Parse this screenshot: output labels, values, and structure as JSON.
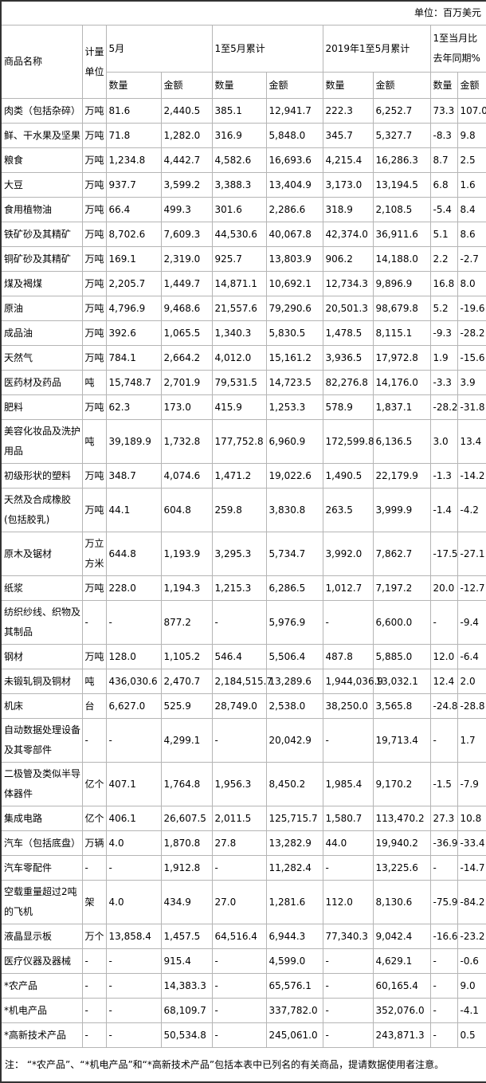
{
  "unit_note": "单位：百万美元",
  "header": {
    "commodity": "商品名称",
    "unit": "计量单位",
    "groups": [
      {
        "label": "5月",
        "sub": [
          "数量",
          "金额"
        ]
      },
      {
        "label": "1至5月累计",
        "sub": [
          "数量",
          "金额"
        ]
      },
      {
        "label": "2019年1至5月累计",
        "sub": [
          "数量",
          "金额"
        ]
      },
      {
        "label": "1至当月比去年同期%",
        "sub": [
          "数量",
          "金额"
        ]
      }
    ]
  },
  "rows": [
    {
      "name": "肉类（包括杂碎）",
      "unit": "万吨",
      "values": [
        "81.6",
        "2,440.5",
        "385.1",
        "12,941.7",
        "222.3",
        "6,252.7",
        "73.3",
        "107.0"
      ]
    },
    {
      "name": "鲜、干水果及坚果",
      "unit": "万吨",
      "values": [
        "71.8",
        "1,282.0",
        "316.9",
        "5,848.0",
        "345.7",
        "5,327.7",
        "-8.3",
        "9.8"
      ]
    },
    {
      "name": "粮食",
      "unit": "万吨",
      "values": [
        "1,234.8",
        "4,442.7",
        "4,582.6",
        "16,693.6",
        "4,215.4",
        "16,286.3",
        "8.7",
        "2.5"
      ]
    },
    {
      "name": "大豆",
      "unit": "万吨",
      "values": [
        "937.7",
        "3,599.2",
        "3,388.3",
        "13,404.9",
        "3,173.0",
        "13,194.5",
        "6.8",
        "1.6"
      ]
    },
    {
      "name": "食用植物油",
      "unit": "万吨",
      "values": [
        "66.4",
        "499.3",
        "301.6",
        "2,286.6",
        "318.9",
        "2,108.5",
        "-5.4",
        "8.4"
      ]
    },
    {
      "name": "铁矿砂及其精矿",
      "unit": "万吨",
      "values": [
        "8,702.6",
        "7,609.3",
        "44,530.6",
        "40,067.8",
        "42,374.0",
        "36,911.6",
        "5.1",
        "8.6"
      ]
    },
    {
      "name": "铜矿砂及其精矿",
      "unit": "万吨",
      "values": [
        "169.1",
        "2,319.0",
        "925.7",
        "13,803.9",
        "906.2",
        "14,188.0",
        "2.2",
        "-2.7"
      ]
    },
    {
      "name": "煤及褐煤",
      "unit": "万吨",
      "values": [
        "2,205.7",
        "1,449.7",
        "14,871.1",
        "10,692.1",
        "12,734.3",
        "9,896.9",
        "16.8",
        "8.0"
      ]
    },
    {
      "name": "原油",
      "unit": "万吨",
      "values": [
        "4,796.9",
        "9,468.6",
        "21,557.6",
        "79,290.6",
        "20,501.3",
        "98,679.8",
        "5.2",
        "-19.6"
      ]
    },
    {
      "name": "成品油",
      "unit": "万吨",
      "values": [
        "392.6",
        "1,065.5",
        "1,340.3",
        "5,830.5",
        "1,478.5",
        "8,115.1",
        "-9.3",
        "-28.2"
      ]
    },
    {
      "name": "天然气",
      "unit": "万吨",
      "values": [
        "784.1",
        "2,664.2",
        "4,012.0",
        "15,161.2",
        "3,936.5",
        "17,972.8",
        "1.9",
        "-15.6"
      ]
    },
    {
      "name": "医药材及药品",
      "unit": "吨",
      "values": [
        "15,748.7",
        "2,701.9",
        "79,531.5",
        "14,723.5",
        "82,276.8",
        "14,176.0",
        "-3.3",
        "3.9"
      ]
    },
    {
      "name": "肥料",
      "unit": "万吨",
      "values": [
        "62.3",
        "173.0",
        "415.9",
        "1,253.3",
        "578.9",
        "1,837.1",
        "-28.2",
        "-31.8"
      ]
    },
    {
      "name": "美容化妆品及洗护用品",
      "unit": "吨",
      "values": [
        "39,189.9",
        "1,732.8",
        "177,752.8",
        "6,960.9",
        "172,599.8",
        "6,136.5",
        "3.0",
        "13.4"
      ]
    },
    {
      "name": "初级形状的塑料",
      "unit": "万吨",
      "values": [
        "348.7",
        "4,074.6",
        "1,471.2",
        "19,022.6",
        "1,490.5",
        "22,179.9",
        "-1.3",
        "-14.2"
      ]
    },
    {
      "name": "天然及合成橡胶(包括胶乳)",
      "unit": "万吨",
      "values": [
        "44.1",
        "604.8",
        "259.8",
        "3,830.8",
        "263.5",
        "3,999.9",
        "-1.4",
        "-4.2"
      ]
    },
    {
      "name": "原木及锯材",
      "unit": "万立方米",
      "values": [
        "644.8",
        "1,193.9",
        "3,295.3",
        "5,734.7",
        "3,992.0",
        "7,862.7",
        "-17.5",
        "-27.1"
      ]
    },
    {
      "name": "纸浆",
      "unit": "万吨",
      "values": [
        "228.0",
        "1,194.3",
        "1,215.3",
        "6,286.5",
        "1,012.7",
        "7,197.2",
        "20.0",
        "-12.7"
      ]
    },
    {
      "name": "纺织纱线、织物及其制品",
      "unit": "-",
      "values": [
        "-",
        "877.2",
        "-",
        "5,976.9",
        "-",
        "6,600.0",
        "-",
        "-9.4"
      ]
    },
    {
      "name": "钢材",
      "unit": "万吨",
      "values": [
        "128.0",
        "1,105.2",
        "546.4",
        "5,506.4",
        "487.8",
        "5,885.0",
        "12.0",
        "-6.4"
      ]
    },
    {
      "name": "未锻轧铜及铜材",
      "unit": "吨",
      "values": [
        "436,030.6",
        "2,470.7",
        "2,184,515.7",
        "13,289.6",
        "1,944,036.9",
        "13,032.1",
        "12.4",
        "2.0"
      ]
    },
    {
      "name": "机床",
      "unit": "台",
      "values": [
        "6,627.0",
        "525.9",
        "28,749.0",
        "2,538.0",
        "38,250.0",
        "3,565.8",
        "-24.8",
        "-28.8"
      ]
    },
    {
      "name": "自动数据处理设备及其零部件",
      "unit": "-",
      "values": [
        "-",
        "4,299.1",
        "-",
        "20,042.9",
        "-",
        "19,713.4",
        "-",
        "1.7"
      ]
    },
    {
      "name": "二极管及类似半导体器件",
      "unit": "亿个",
      "values": [
        "407.1",
        "1,764.8",
        "1,956.3",
        "8,450.2",
        "1,985.4",
        "9,170.2",
        "-1.5",
        "-7.9"
      ]
    },
    {
      "name": "集成电路",
      "unit": "亿个",
      "values": [
        "406.1",
        "26,607.5",
        "2,011.5",
        "125,715.7",
        "1,580.7",
        "113,470.2",
        "27.3",
        "10.8"
      ]
    },
    {
      "name": "汽车（包括底盘）",
      "unit": "万辆",
      "values": [
        "4.0",
        "1,870.8",
        "27.8",
        "13,282.9",
        "44.0",
        "19,940.2",
        "-36.9",
        "-33.4"
      ]
    },
    {
      "name": "汽车零配件",
      "unit": "-",
      "values": [
        "-",
        "1,912.8",
        "-",
        "11,282.4",
        "-",
        "13,225.6",
        "-",
        "-14.7"
      ]
    },
    {
      "name": "空载重量超过2吨的飞机",
      "unit": "架",
      "values": [
        "4.0",
        "434.9",
        "27.0",
        "1,281.6",
        "112.0",
        "8,130.6",
        "-75.9",
        "-84.2"
      ]
    },
    {
      "name": "液晶显示板",
      "unit": "万个",
      "values": [
        "13,858.4",
        "1,457.5",
        "64,516.4",
        "6,944.3",
        "77,340.3",
        "9,042.4",
        "-16.6",
        "-23.2"
      ]
    },
    {
      "name": "医疗仪器及器械",
      "unit": "-",
      "values": [
        "-",
        "915.4",
        "-",
        "4,599.0",
        "-",
        "4,629.1",
        "-",
        "-0.6"
      ]
    },
    {
      "name": "*农产品",
      "unit": "-",
      "values": [
        "-",
        "14,383.3",
        "-",
        "65,576.1",
        "-",
        "60,165.4",
        "-",
        "9.0"
      ]
    },
    {
      "name": "*机电产品",
      "unit": "-",
      "values": [
        "-",
        "68,109.7",
        "-",
        "337,782.0",
        "-",
        "352,076.0",
        "-",
        "-4.1"
      ]
    },
    {
      "name": "*高新技术产品",
      "unit": "-",
      "values": [
        "-",
        "50,534.8",
        "-",
        "245,061.0",
        "-",
        "243,871.3",
        "-",
        "0.5"
      ]
    }
  ],
  "footnote": "注： “*农产品”、“*机电产品”和“*高新技术产品”包括本表中已列名的有关商品，提请数据使用者注意。"
}
